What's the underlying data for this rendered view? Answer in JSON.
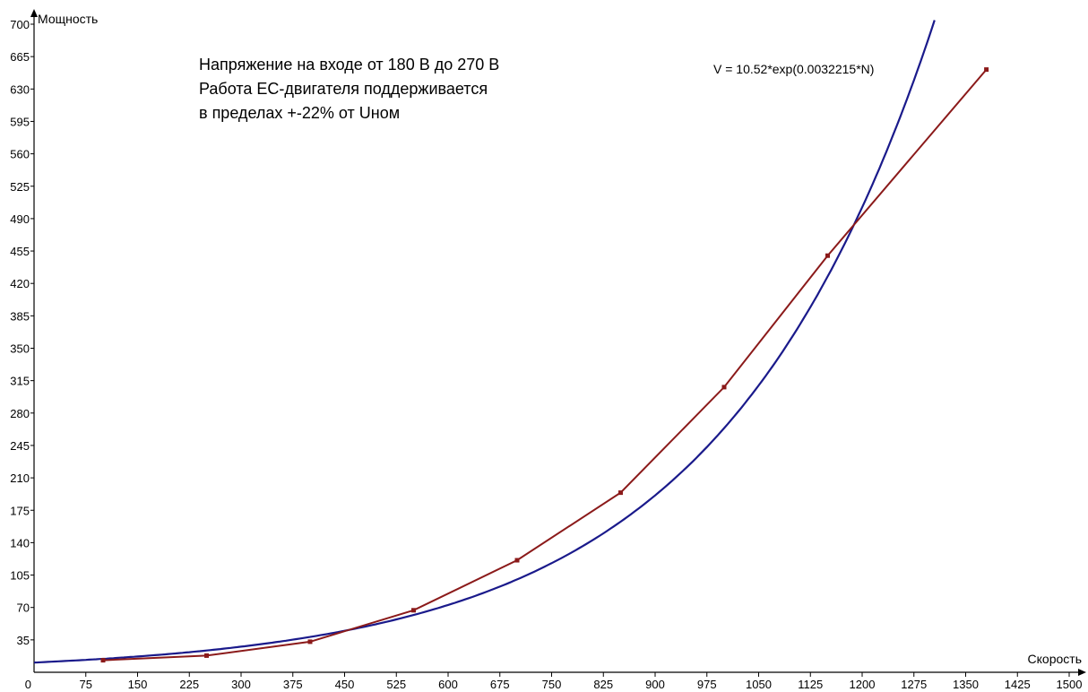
{
  "chart_data": {
    "type": "line",
    "xlabel": "Скорость",
    "ylabel": "Мощность",
    "xlim": [
      0,
      1500
    ],
    "ylim": [
      0,
      700
    ],
    "x_ticks": [
      0,
      75,
      150,
      225,
      300,
      375,
      450,
      525,
      600,
      675,
      750,
      825,
      900,
      975,
      1050,
      1125,
      1200,
      1275,
      1350,
      1425,
      1500
    ],
    "x_tick_labels": [
      "0",
      "75",
      "150",
      "225",
      "300",
      "375",
      "450",
      "525",
      "600",
      "675",
      "750",
      "825",
      "900",
      "975",
      "1050",
      "1125",
      "1200",
      "1275",
      "1350",
      "1425",
      "1500"
    ],
    "y_ticks": [
      35,
      70,
      105,
      140,
      175,
      210,
      245,
      280,
      315,
      350,
      385,
      420,
      455,
      490,
      525,
      560,
      595,
      630,
      665,
      700
    ],
    "y_tick_labels": [
      "35",
      "70",
      "105",
      "140",
      "175",
      "210",
      "245",
      "280",
      "315",
      "350",
      "385",
      "420",
      "455",
      "490",
      "525",
      "560",
      "595",
      "630",
      "665",
      "700"
    ],
    "grid": false,
    "series": [
      {
        "color": "#8b1a1a",
        "markers": true,
        "x": [
          100,
          250,
          400,
          550,
          700,
          850,
          1000,
          1150,
          1380
        ],
        "y": [
          13,
          18,
          33,
          67,
          121,
          194,
          308,
          450,
          651
        ]
      },
      {
        "color": "#1a1a8b",
        "markers": false,
        "equation": "V = 10.52*exp(0.0032215*N)",
        "coef_a": 10.52,
        "coef_b": 0.0032215,
        "x_range": [
          0,
          1305
        ]
      }
    ],
    "annotations": {
      "note_lines": [
        "Напряжение на входе от 180 В до 270 В",
        "Работа ЕС-двигателя поддерживается",
        "в пределах +-22% от Uном"
      ],
      "formula": "V = 10.52*exp(0.0032215*N)"
    }
  }
}
